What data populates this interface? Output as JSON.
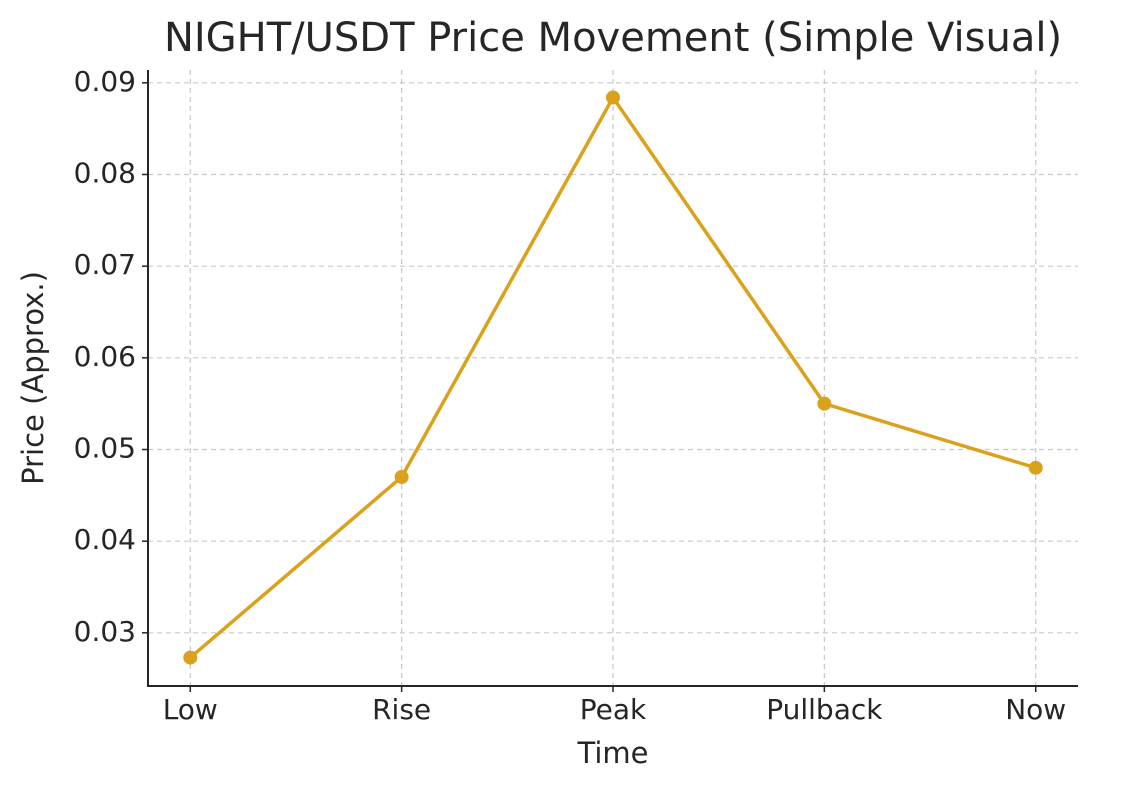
{
  "chart_data": {
    "type": "line",
    "title": "NIGHT/USDT Price Movement (Simple Visual)",
    "x_label": "Time",
    "y_label": "Price (Approx.)",
    "categories": [
      "Low",
      "Rise",
      "Peak",
      "Pullback",
      "Now"
    ],
    "values": [
      0.0273,
      0.047,
      0.0884,
      0.055,
      0.048
    ],
    "color": "#dba11c",
    "ylim": [
      0.0242,
      0.0914
    ],
    "yticks": [
      0.03,
      0.04,
      0.05,
      0.06,
      0.07,
      0.08,
      0.09
    ],
    "grid": true
  }
}
